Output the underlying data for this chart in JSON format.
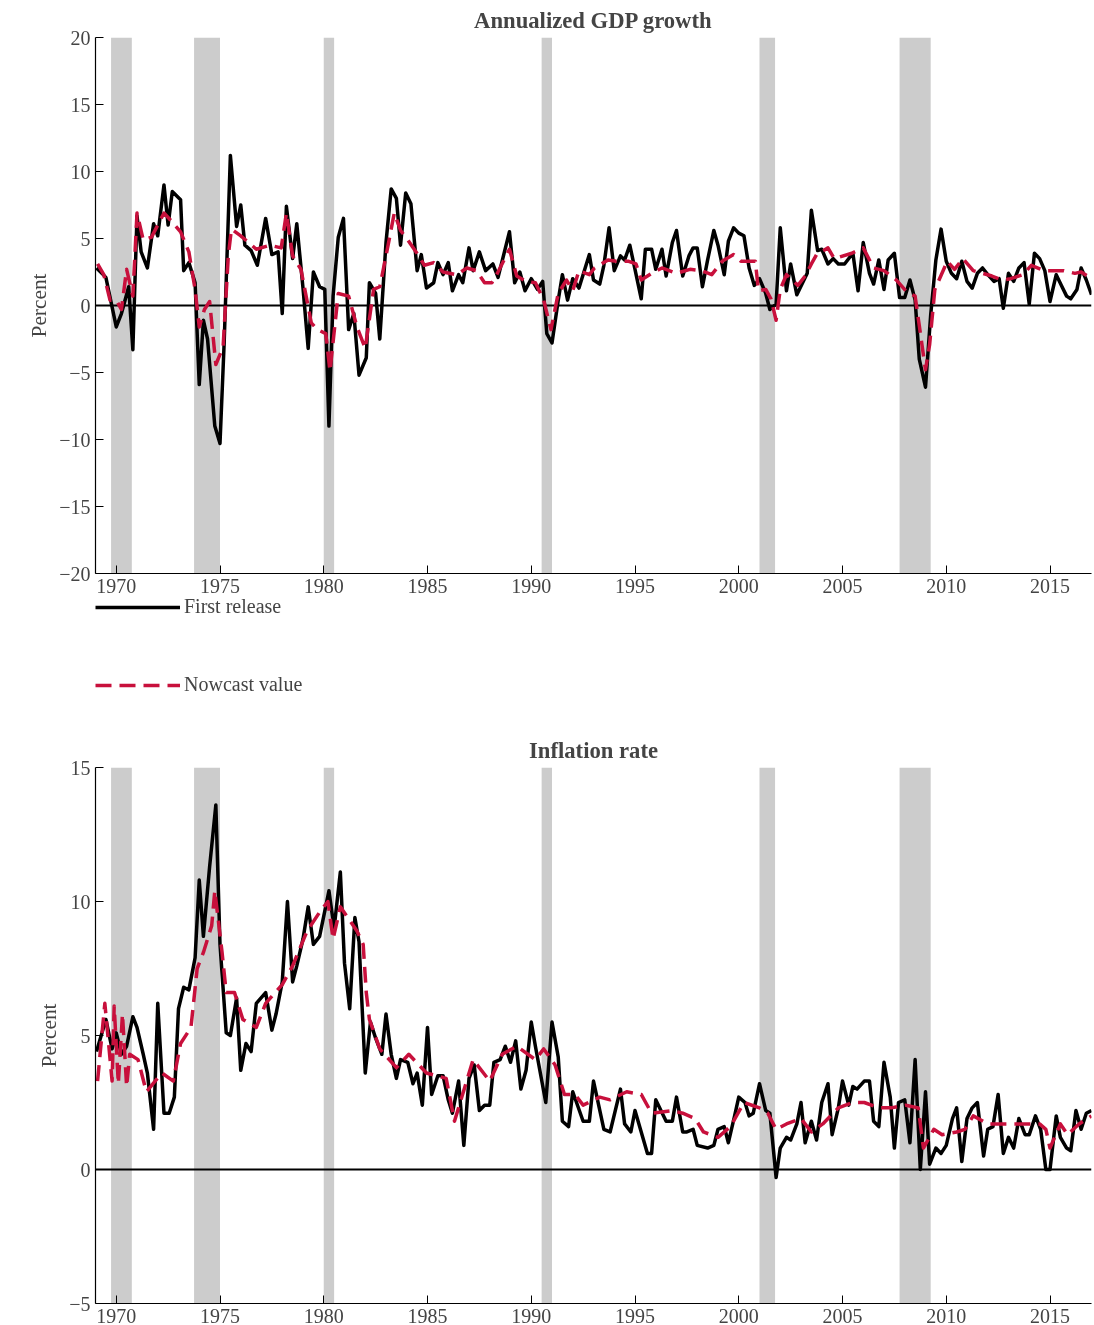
{
  "chart_data": [
    {
      "type": "line",
      "title": "Annualized GDP growth",
      "ylabel": "Percent",
      "xlim": [
        1969,
        2017
      ],
      "xticks": [
        1970,
        1975,
        1980,
        1985,
        1990,
        1995,
        2000,
        2005,
        2010,
        2015
      ],
      "ylim": [
        -20,
        20
      ],
      "yticks": [
        -20,
        -15,
        -10,
        -5,
        0,
        5,
        10,
        15,
        20
      ],
      "grid": false,
      "legend": "bottom left",
      "bands": [
        {
          "axis": "x",
          "from": 1969.75,
          "to": 1970.75,
          "color": "#cccccc"
        },
        {
          "axis": "x",
          "from": 1973.75,
          "to": 1975.0,
          "color": "#cccccc"
        },
        {
          "axis": "x",
          "from": 1980.0,
          "to": 1980.5,
          "color": "#cccccc"
        },
        {
          "axis": "x",
          "from": 1990.5,
          "to": 1991.0,
          "color": "#cccccc"
        },
        {
          "axis": "x",
          "from": 2001.0,
          "to": 2001.75,
          "color": "#cccccc"
        },
        {
          "axis": "x",
          "from": 2007.75,
          "to": 2009.25,
          "color": "#cccccc"
        }
      ],
      "ref_lines": [
        {
          "axis": "y",
          "value": 0,
          "color": "#000000"
        }
      ],
      "series": [
        {
          "name": "First release",
          "color": "#000000",
          "line_style": "solid",
          "x": [
            1969.05,
            1969.5,
            1970.0,
            1970.25,
            1970.6,
            1970.8,
            1971.0,
            1971.2,
            1971.5,
            1971.8,
            1972.0,
            1972.3,
            1972.5,
            1972.7,
            1973.1,
            1973.25,
            1973.5,
            1973.8,
            1974.0,
            1974.2,
            1974.4,
            1974.75,
            1975.0,
            1975.2,
            1975.5,
            1975.8,
            1976.0,
            1976.2,
            1976.5,
            1976.8,
            1977.2,
            1977.5,
            1977.8,
            1978.0,
            1978.2,
            1978.5,
            1978.7,
            1979.0,
            1979.25,
            1979.5,
            1979.8,
            1980.05,
            1980.25,
            1980.45,
            1980.7,
            1980.95,
            1981.2,
            1981.45,
            1981.7,
            1982.05,
            1982.2,
            1982.5,
            1982.7,
            1983.0,
            1983.25,
            1983.5,
            1983.7,
            1983.95,
            1984.2,
            1984.5,
            1984.7,
            1984.95,
            1985.3,
            1985.5,
            1985.75,
            1986.0,
            1986.2,
            1986.5,
            1986.7,
            1987.0,
            1987.2,
            1987.5,
            1987.8,
            1988.15,
            1988.4,
            1988.95,
            1989.2,
            1989.45,
            1989.7,
            1990.0,
            1990.3,
            1990.55,
            1990.75,
            1991.0,
            1991.3,
            1991.5,
            1991.75,
            1992.0,
            1992.3,
            1992.8,
            1993.0,
            1993.3,
            1993.5,
            1993.75,
            1994.0,
            1994.3,
            1994.5,
            1994.75,
            1995.0,
            1995.3,
            1995.5,
            1995.8,
            1996.0,
            1996.3,
            1996.5,
            1996.8,
            1997.0,
            1997.3,
            1997.6,
            1997.8,
            1998.0,
            1998.25,
            1998.5,
            1998.8,
            1999.0,
            1999.3,
            1999.5,
            1999.75,
            2000.0,
            2000.25,
            2000.5,
            2000.75,
            2001.0,
            2001.3,
            2001.5,
            2001.8,
            2002.0,
            2002.3,
            2002.5,
            2002.8,
            2003.3,
            2003.5,
            2003.8,
            2004.0,
            2004.3,
            2004.55,
            2004.8,
            2005.1,
            2005.5,
            2005.75,
            2006.0,
            2006.3,
            2006.5,
            2006.75,
            2007.0,
            2007.2,
            2007.5,
            2007.75,
            2008.0,
            2008.25,
            2008.5,
            2008.7,
            2009.0,
            2009.25,
            2009.5,
            2009.75,
            2010.0,
            2010.25,
            2010.5,
            2010.75,
            2011.0,
            2011.25,
            2011.5,
            2011.75,
            2012.0,
            2012.3,
            2012.55,
            2012.75,
            2013.0,
            2013.25,
            2013.5,
            2013.75,
            2014.0,
            2014.25,
            2014.5,
            2014.75,
            2015.0,
            2015.3,
            2015.55,
            2015.8,
            2016.0,
            2016.3,
            2016.5,
            2016.75,
            2017.0
          ],
          "values": [
            2.8,
            2.1,
            -1.6,
            -0.6,
            1.4,
            -3.3,
            6.7,
            4.0,
            2.8,
            6.1,
            5.2,
            9.0,
            6.0,
            8.5,
            7.9,
            2.6,
            3.2,
            1.7,
            -5.9,
            -1.1,
            -2.5,
            -9.0,
            -10.3,
            -2.8,
            11.2,
            5.9,
            7.5,
            4.5,
            4.1,
            3.0,
            6.5,
            3.8,
            4.0,
            -0.6,
            7.4,
            3.5,
            6.1,
            1.3,
            -3.2,
            2.5,
            1.4,
            1.2,
            -9.0,
            0.7,
            5.1,
            6.5,
            -1.8,
            -0.6,
            -5.2,
            -3.9,
            1.7,
            0.9,
            -2.5,
            4.7,
            8.7,
            8.0,
            4.5,
            8.4,
            7.6,
            2.6,
            3.8,
            1.3,
            1.7,
            3.2,
            2.3,
            3.2,
            1.1,
            2.3,
            1.7,
            4.3,
            2.6,
            4.0,
            2.6,
            3.1,
            2.1,
            5.5,
            1.7,
            2.5,
            1.1,
            2.0,
            1.2,
            1.8,
            -2.1,
            -2.8,
            0.4,
            2.3,
            0.4,
            2.0,
            1.3,
            3.8,
            1.9,
            1.6,
            3.0,
            5.8,
            2.6,
            3.7,
            3.4,
            4.5,
            2.7,
            0.5,
            4.2,
            4.2,
            2.7,
            4.2,
            2.2,
            4.7,
            5.6,
            2.2,
            3.7,
            4.3,
            4.3,
            1.4,
            3.4,
            5.6,
            4.5,
            2.3,
            4.8,
            5.8,
            5.4,
            5.2,
            2.8,
            1.5,
            2.0,
            0.9,
            -0.3,
            0.1,
            5.8,
            1.1,
            3.1,
            0.8,
            2.4,
            7.1,
            4.1,
            4.2,
            3.1,
            3.5,
            3.1,
            3.1,
            3.9,
            1.1,
            4.7,
            2.4,
            1.6,
            3.4,
            1.2,
            3.4,
            3.9,
            0.6,
            0.6,
            1.9,
            0.4,
            -4.0,
            -6.1,
            -0.7,
            3.4,
            5.7,
            3.3,
            2.4,
            2.0,
            3.3,
            1.8,
            1.3,
            2.4,
            2.8,
            2.3,
            1.8,
            2.0,
            -0.2,
            2.4,
            1.8,
            2.8,
            3.2,
            0.1,
            3.9,
            3.5,
            2.6,
            0.3,
            2.3,
            1.5,
            0.7,
            0.5,
            1.2,
            2.8,
            1.9,
            0.8
          ]
        },
        {
          "name": "Nowcast value",
          "color": "#c8103c",
          "line_style": "dashed",
          "x": [
            1969.1,
            1969.4,
            1969.7,
            1970.0,
            1970.25,
            1970.5,
            1970.8,
            1971.0,
            1971.3,
            1971.7,
            1972.3,
            1972.6,
            1973.1,
            1973.5,
            1973.8,
            1974.0,
            1974.25,
            1974.5,
            1974.8,
            1975.15,
            1975.4,
            1975.55,
            1976.0,
            1976.75,
            1977.4,
            1977.95,
            1978.2,
            1978.5,
            1978.9,
            1979.4,
            1979.7,
            1980.1,
            1980.3,
            1980.7,
            1981.2,
            1981.6,
            1982.0,
            1982.4,
            1982.7,
            1983.0,
            1983.4,
            1983.7,
            1984.05,
            1984.45,
            1984.85,
            1985.3,
            1985.75,
            1986.4,
            1986.9,
            1987.35,
            1987.75,
            1988.1,
            1988.3,
            1988.95,
            1989.3,
            1989.75,
            1990.2,
            1990.6,
            1990.95,
            1991.3,
            1991.7,
            1992.0,
            1992.3,
            1992.8,
            1993.05,
            1993.7,
            1994.1,
            1994.7,
            1995.05,
            1995.3,
            1995.8,
            1996.3,
            1997.0,
            1997.65,
            1998.2,
            1998.7,
            1999.2,
            1999.75,
            2000.1,
            2000.8,
            2000.95,
            2001.3,
            2001.55,
            2001.8,
            2002.0,
            2002.3,
            2002.85,
            2003.2,
            2003.5,
            2003.75,
            2004.3,
            2004.6,
            2005.45,
            2006.0,
            2006.5,
            2007.0,
            2007.6,
            2008.1,
            2008.5,
            2008.7,
            2009.0,
            2009.2,
            2009.45,
            2010.05,
            2010.4,
            2010.8,
            2011.3,
            2011.75,
            2012.2,
            2012.7,
            2013.1,
            2013.7,
            2014.1,
            2014.7,
            2015.15,
            2015.65,
            2016.2,
            2016.5,
            2017.0
          ],
          "values": [
            3.1,
            2.3,
            0.4,
            0.4,
            -0.3,
            2.7,
            0.7,
            6.9,
            4.9,
            5.1,
            6.9,
            6.4,
            5.5,
            4.0,
            1.2,
            -1.6,
            -0.3,
            0.3,
            -4.4,
            -3.1,
            3.7,
            5.7,
            5.2,
            4.2,
            4.5,
            4.3,
            6.9,
            3.7,
            2.7,
            -1.3,
            -1.8,
            -2.1,
            -4.9,
            0.9,
            0.7,
            -1.6,
            -3.2,
            1.2,
            1.4,
            3.7,
            6.9,
            5.6,
            4.9,
            4.0,
            3.0,
            3.2,
            2.5,
            2.3,
            2.8,
            2.6,
            1.7,
            1.7,
            2.2,
            4.2,
            2.2,
            1.8,
            1.7,
            0.4,
            -1.8,
            0.9,
            1.9,
            1.1,
            2.6,
            2.3,
            2.8,
            3.4,
            3.3,
            3.3,
            3.1,
            1.9,
            2.4,
            2.8,
            2.4,
            2.7,
            2.6,
            2.3,
            3.3,
            3.8,
            3.3,
            3.3,
            1.1,
            1.2,
            0.5,
            -1.1,
            1.2,
            2.3,
            1.5,
            2.2,
            3.1,
            3.8,
            4.3,
            3.5,
            3.9,
            4.3,
            2.8,
            2.6,
            1.9,
            1.0,
            0.7,
            -1.5,
            -4.8,
            -2.9,
            1.2,
            3.3,
            2.7,
            3.5,
            2.6,
            2.4,
            2.2,
            1.9,
            2.0,
            2.3,
            3.0,
            2.6,
            2.6,
            2.6,
            2.4,
            2.5,
            2.0
          ]
        }
      ]
    },
    {
      "type": "line",
      "title": "Inflation rate",
      "ylabel": "Percent",
      "xlim": [
        1969,
        2017
      ],
      "xticks": [
        1970,
        1975,
        1980,
        1985,
        1990,
        1995,
        2000,
        2005,
        2010,
        2015
      ],
      "ylim": [
        -5,
        15
      ],
      "yticks": [
        -5,
        0,
        5,
        10,
        15
      ],
      "grid": false,
      "bands": [
        {
          "axis": "x",
          "from": 1969.75,
          "to": 1970.75,
          "color": "#cccccc"
        },
        {
          "axis": "x",
          "from": 1973.75,
          "to": 1975.0,
          "color": "#cccccc"
        },
        {
          "axis": "x",
          "from": 1980.0,
          "to": 1980.5,
          "color": "#cccccc"
        },
        {
          "axis": "x",
          "from": 1990.5,
          "to": 1991.0,
          "color": "#cccccc"
        },
        {
          "axis": "x",
          "from": 2001.0,
          "to": 2001.75,
          "color": "#cccccc"
        },
        {
          "axis": "x",
          "from": 2007.75,
          "to": 2009.25,
          "color": "#cccccc"
        }
      ],
      "ref_lines": [
        {
          "axis": "y",
          "value": 0,
          "color": "#000000"
        }
      ],
      "series": [
        {
          "color": "#000000",
          "line_style": "solid",
          "x": [
            1969.05,
            1969.5,
            1969.8,
            1970.0,
            1970.25,
            1970.5,
            1970.8,
            1971.0,
            1971.3,
            1971.5,
            1971.8,
            1972.0,
            1972.3,
            1972.55,
            1972.8,
            1973.0,
            1973.25,
            1973.5,
            1973.8,
            1974.0,
            1974.2,
            1974.5,
            1974.8,
            1975.0,
            1975.3,
            1975.5,
            1975.8,
            1976.0,
            1976.25,
            1976.5,
            1976.75,
            1977.2,
            1977.5,
            1977.7,
            1978.0,
            1978.25,
            1978.5,
            1978.7,
            1979.0,
            1979.25,
            1979.5,
            1979.8,
            1980.25,
            1980.5,
            1980.8,
            1981.0,
            1981.25,
            1981.5,
            1981.7,
            1982.0,
            1982.25,
            1982.5,
            1982.8,
            1983.0,
            1983.25,
            1983.5,
            1983.7,
            1984.05,
            1984.3,
            1984.5,
            1984.75,
            1985.0,
            1985.2,
            1985.5,
            1985.75,
            1986.0,
            1986.2,
            1986.5,
            1986.75,
            1987.0,
            1987.25,
            1987.5,
            1987.75,
            1988.0,
            1988.2,
            1988.5,
            1988.75,
            1989.0,
            1989.25,
            1989.5,
            1989.75,
            1990.0,
            1990.2,
            1990.7,
            1991.0,
            1991.3,
            1991.5,
            1991.8,
            1992.0,
            1992.5,
            1992.8,
            1993.0,
            1993.5,
            1993.8,
            1994.3,
            1994.5,
            1994.8,
            1995.0,
            1995.6,
            1995.8,
            1996.0,
            1996.5,
            1996.8,
            1997.0,
            1997.3,
            1997.5,
            1997.8,
            1998.0,
            1998.5,
            1998.8,
            1999.0,
            1999.3,
            1999.5,
            1999.8,
            2000.0,
            2000.3,
            2000.5,
            2000.7,
            2001.0,
            2001.3,
            2001.5,
            2001.8,
            2002.0,
            2002.3,
            2002.5,
            2002.8,
            2003.0,
            2003.2,
            2003.5,
            2003.75,
            2004.0,
            2004.3,
            2004.5,
            2004.8,
            2005.0,
            2005.3,
            2005.5,
            2005.7,
            2006.05,
            2006.3,
            2006.5,
            2006.75,
            2007.0,
            2007.3,
            2007.5,
            2007.7,
            2008.0,
            2008.25,
            2008.5,
            2008.75,
            2009.0,
            2009.2,
            2009.5,
            2009.75,
            2010.0,
            2010.3,
            2010.5,
            2010.75,
            2011.0,
            2011.25,
            2011.5,
            2011.8,
            2012.0,
            2012.25,
            2012.5,
            2012.75,
            2013.0,
            2013.25,
            2013.5,
            2013.8,
            2014.0,
            2014.3,
            2014.55,
            2014.8,
            2015.0,
            2015.3,
            2015.5,
            2015.8,
            2016.0,
            2016.25,
            2016.5,
            2016.75,
            2017.0
          ],
          "values": [
            4.4,
            5.6,
            4.5,
            5.1,
            4.3,
            4.6,
            5.7,
            5.3,
            4.3,
            3.6,
            1.5,
            6.2,
            2.1,
            2.1,
            2.7,
            6.0,
            6.8,
            6.7,
            7.9,
            10.8,
            8.7,
            11.3,
            13.6,
            8.4,
            5.1,
            5.0,
            6.4,
            3.7,
            4.7,
            4.4,
            6.2,
            6.6,
            5.2,
            5.8,
            7.0,
            10.0,
            7.0,
            7.6,
            8.6,
            9.8,
            8.4,
            8.7,
            10.4,
            9.0,
            11.1,
            7.7,
            6.0,
            9.4,
            8.5,
            3.6,
            5.5,
            4.9,
            4.3,
            5.8,
            4.3,
            3.4,
            4.1,
            4.0,
            3.2,
            3.6,
            2.4,
            5.3,
            2.8,
            3.5,
            3.5,
            2.6,
            2.1,
            3.3,
            0.9,
            3.4,
            3.9,
            2.2,
            2.4,
            2.4,
            4.0,
            4.1,
            4.6,
            4.0,
            4.8,
            3.0,
            3.7,
            5.5,
            4.6,
            2.5,
            5.5,
            4.2,
            1.8,
            1.6,
            2.9,
            1.8,
            1.8,
            3.3,
            1.5,
            1.4,
            3.0,
            1.7,
            1.4,
            2.2,
            0.6,
            0.6,
            2.6,
            1.8,
            1.8,
            2.7,
            1.4,
            1.4,
            1.5,
            0.9,
            0.8,
            0.9,
            1.5,
            1.6,
            1.0,
            2.0,
            2.7,
            2.5,
            2.0,
            2.1,
            3.2,
            2.2,
            2.1,
            -0.3,
            0.8,
            1.2,
            1.1,
            1.7,
            2.5,
            1.0,
            1.8,
            1.1,
            2.5,
            3.2,
            1.3,
            2.3,
            3.3,
            2.4,
            3.1,
            3.0,
            3.3,
            3.3,
            1.8,
            1.6,
            4.0,
            2.7,
            0.8,
            2.5,
            2.6,
            1.0,
            4.1,
            0.0,
            2.9,
            0.2,
            0.8,
            0.6,
            0.9,
            1.9,
            2.3,
            0.3,
            1.9,
            2.3,
            2.5,
            0.5,
            1.5,
            1.6,
            2.8,
            0.6,
            1.2,
            0.8,
            1.9,
            1.3,
            1.3,
            2.0,
            1.5,
            0.0,
            0.0,
            2.0,
            1.2,
            0.8,
            0.7,
            2.2,
            1.5,
            2.1,
            2.2
          ]
        },
        {
          "color": "#c8103c",
          "line_style": "dashed",
          "x": [
            1969.1,
            1969.45,
            1969.8,
            1969.9,
            1970.1,
            1970.3,
            1970.5,
            1970.65,
            1971.05,
            1971.45,
            1972.2,
            1972.75,
            1973.1,
            1973.6,
            1973.9,
            1974.2,
            1974.6,
            1974.75,
            1975.1,
            1975.3,
            1975.7,
            1976.1,
            1976.75,
            1977.2,
            1978.0,
            1978.5,
            1979.2,
            1979.8,
            1980.2,
            1980.45,
            1980.8,
            1981.6,
            1981.9,
            1982.05,
            1982.2,
            1982.7,
            1983.5,
            1984.1,
            1984.95,
            1985.9,
            1986.3,
            1987.2,
            1988.0,
            1988.6,
            1989.3,
            1990.2,
            1990.6,
            1991.15,
            1991.6,
            1992.1,
            1992.5,
            1993.3,
            1993.8,
            1994.6,
            1995.3,
            1995.8,
            1996.8,
            1997.3,
            1997.9,
            1998.3,
            1999.0,
            1999.6,
            2000.25,
            2001.0,
            2001.4,
            2001.8,
            2002.3,
            2003.0,
            2003.5,
            2004.05,
            2004.8,
            2005.5,
            2006.05,
            2006.75,
            2007.35,
            2008.05,
            2008.65,
            2008.9,
            2009.4,
            2009.8,
            2010.5,
            2010.9,
            2011.3,
            2012.0,
            2012.7,
            2013.6,
            2014.5,
            2014.8,
            2015.0,
            2015.5,
            2015.85,
            2016.4,
            2017.0
          ],
          "values": [
            3.3,
            6.2,
            3.3,
            6.1,
            3.2,
            5.8,
            3.1,
            4.3,
            4.1,
            2.9,
            3.6,
            3.3,
            4.7,
            5.3,
            7.5,
            8.1,
            9.1,
            10.4,
            8.1,
            6.6,
            6.6,
            5.6,
            5.3,
            6.2,
            6.9,
            7.6,
            8.9,
            9.6,
            10.0,
            8.6,
            9.8,
            8.9,
            8.4,
            6.6,
            5.6,
            4.5,
            3.8,
            4.3,
            3.6,
            3.4,
            1.8,
            4.1,
            3.3,
            4.3,
            4.6,
            4.1,
            4.5,
            3.9,
            2.8,
            2.8,
            2.4,
            2.7,
            2.6,
            2.9,
            2.8,
            2.1,
            2.2,
            2.1,
            1.9,
            1.4,
            1.2,
            1.6,
            2.5,
            2.3,
            2.1,
            1.5,
            1.7,
            1.9,
            1.4,
            1.7,
            2.3,
            2.5,
            2.5,
            2.3,
            2.3,
            2.4,
            2.3,
            0.8,
            1.5,
            1.3,
            1.4,
            1.5,
            2.0,
            1.7,
            1.7,
            1.7,
            1.7,
            1.5,
            0.8,
            1.7,
            1.3,
            1.7,
            2.0
          ]
        }
      ]
    }
  ]
}
